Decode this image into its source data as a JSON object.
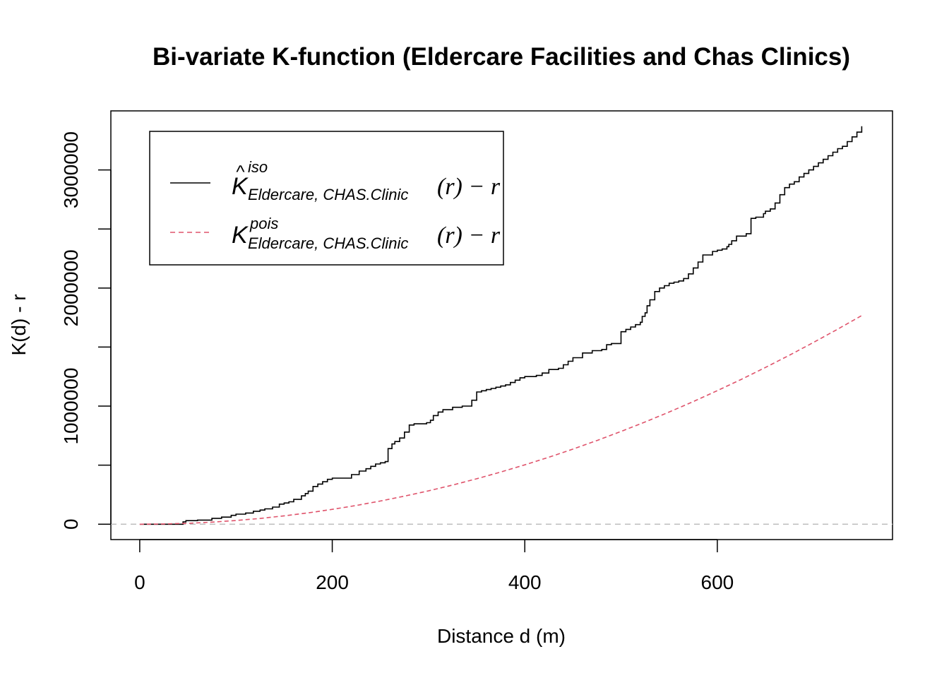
{
  "chart_data": {
    "type": "line",
    "title": "Bi-variate K-function (Eldercare Facilities and Chas Clinics)",
    "xlabel": "Distance d (m)",
    "ylabel": "K(d) - r",
    "xlim": [
      -30,
      782
    ],
    "ylim": [
      -130000,
      3500000
    ],
    "x_ticks": [
      0,
      200,
      400,
      600
    ],
    "x_tick_labels": [
      "0",
      "200",
      "400",
      "600"
    ],
    "y_ticks": [
      0,
      500000,
      1000000,
      1500000,
      2000000,
      2500000,
      3000000
    ],
    "y_tick_labels": [
      "0",
      "",
      "1000000",
      "",
      "2000000",
      "",
      "3000000"
    ],
    "grid": false,
    "legend_position": "top-left",
    "reference_line": {
      "y": 0,
      "color": "#BEBEBE",
      "style": "dashed"
    },
    "series": [
      {
        "legend": {
          "hat": true,
          "main": "K",
          "sup": "iso",
          "sub": "Eldercare, CHAS.Clinic",
          "rest": "(r) − r"
        },
        "color": "#000000",
        "style": "solid",
        "step": true,
        "x": [
          0,
          45,
          48,
          60,
          75,
          85,
          95,
          100,
          110,
          118,
          125,
          130,
          138,
          145,
          150,
          155,
          160,
          168,
          172,
          175,
          180,
          185,
          190,
          195,
          200,
          210,
          220,
          228,
          235,
          240,
          245,
          250,
          255,
          258,
          262,
          265,
          270,
          275,
          280,
          285,
          298,
          302,
          305,
          310,
          315,
          325,
          335,
          345,
          350,
          355,
          360,
          365,
          370,
          375,
          380,
          385,
          390,
          395,
          400,
          408,
          412,
          418,
          425,
          435,
          440,
          445,
          450,
          460,
          470,
          480,
          485,
          490,
          500,
          505,
          510,
          515,
          520,
          522,
          525,
          527,
          530,
          535,
          540,
          545,
          550,
          555,
          560,
          565,
          570,
          575,
          580,
          585,
          595,
          600,
          605,
          610,
          612,
          615,
          620,
          630,
          635,
          640,
          648,
          650,
          655,
          660,
          665,
          670,
          675,
          680,
          685,
          690,
          695,
          700,
          705,
          710,
          715,
          720,
          725,
          730,
          735,
          740,
          745,
          750
        ],
        "y": [
          0,
          20000,
          30000,
          35000,
          50000,
          60000,
          75000,
          85000,
          95000,
          110000,
          120000,
          130000,
          145000,
          170000,
          180000,
          190000,
          210000,
          240000,
          260000,
          280000,
          320000,
          340000,
          360000,
          380000,
          390000,
          390000,
          420000,
          450000,
          470000,
          490000,
          510000,
          520000,
          530000,
          640000,
          680000,
          700000,
          730000,
          780000,
          840000,
          850000,
          860000,
          880000,
          920000,
          950000,
          970000,
          990000,
          1000000,
          1050000,
          1120000,
          1130000,
          1140000,
          1150000,
          1160000,
          1170000,
          1180000,
          1200000,
          1220000,
          1240000,
          1250000,
          1250000,
          1260000,
          1280000,
          1310000,
          1320000,
          1350000,
          1380000,
          1410000,
          1450000,
          1470000,
          1480000,
          1520000,
          1530000,
          1630000,
          1650000,
          1670000,
          1690000,
          1710000,
          1760000,
          1790000,
          1850000,
          1900000,
          1970000,
          2000000,
          2020000,
          2040000,
          2050000,
          2060000,
          2080000,
          2120000,
          2170000,
          2220000,
          2280000,
          2310000,
          2320000,
          2330000,
          2350000,
          2370000,
          2400000,
          2440000,
          2460000,
          2590000,
          2600000,
          2630000,
          2650000,
          2670000,
          2720000,
          2790000,
          2850000,
          2880000,
          2900000,
          2940000,
          2970000,
          3000000,
          3030000,
          3060000,
          3090000,
          3120000,
          3150000,
          3180000,
          3200000,
          3240000,
          3280000,
          3320000,
          3370000
        ]
      },
      {
        "legend": {
          "hat": false,
          "main": "K",
          "sup": "pois",
          "sub": "Eldercare, CHAS.Clinic",
          "rest": "(r) − r"
        },
        "color": "#DF536B",
        "style": "dashed",
        "step": false,
        "x": [
          0,
          25,
          50,
          75,
          100,
          125,
          150,
          175,
          200,
          225,
          250,
          275,
          300,
          325,
          350,
          375,
          400,
          425,
          450,
          475,
          500,
          525,
          550,
          575,
          600,
          625,
          650,
          675,
          700,
          725,
          750
        ],
        "y": [
          0,
          2000,
          7800,
          17700,
          31400,
          49100,
          70700,
          96200,
          125700,
          159000,
          196300,
          237600,
          282700,
          331800,
          384800,
          441800,
          502700,
          567500,
          636200,
          708800,
          785400,
          865900,
          950300,
          1038700,
          1131000,
          1227200,
          1327300,
          1431400,
          1539400,
          1651300,
          1767100
        ]
      }
    ]
  }
}
